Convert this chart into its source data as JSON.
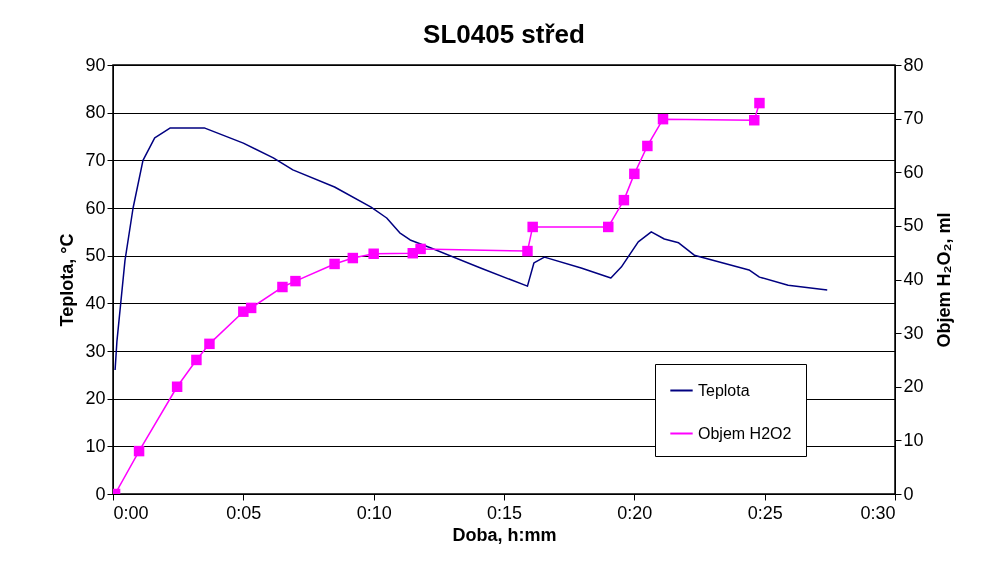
{
  "chart_data": {
    "type": "line",
    "title": "SL0405 střed",
    "xlabel": "Doba, h:mm",
    "ylabel": "Teplota, °C",
    "y2label": "Objem H₂O₂, ml",
    "xlim": [
      0,
      30
    ],
    "xticks": [
      {
        "value": 0,
        "label": "0:00"
      },
      {
        "value": 5,
        "label": "0:05"
      },
      {
        "value": 10,
        "label": "0:10"
      },
      {
        "value": 15,
        "label": "0:15"
      },
      {
        "value": 20,
        "label": "0:20"
      },
      {
        "value": 25,
        "label": "0:25"
      },
      {
        "value": 30,
        "label": "0:30"
      }
    ],
    "ylim": [
      0,
      90
    ],
    "yticks": [
      0,
      10,
      20,
      30,
      40,
      50,
      60,
      70,
      80,
      90
    ],
    "y2lim": [
      0,
      80
    ],
    "y2ticks": [
      0,
      10,
      20,
      30,
      40,
      50,
      60,
      70,
      80
    ],
    "grid": "y",
    "legend": "bottom right",
    "series": [
      {
        "name": "Teplota",
        "color": "#000080",
        "marker": "none",
        "x": [
          0.08,
          0.15,
          0.46,
          0.77,
          1.15,
          1.6,
          2.2,
          3.5,
          5.0,
          6.15,
          6.9,
          8.5,
          9.9,
          10.5,
          11.0,
          11.4,
          12.2,
          14.1,
          15.9,
          16.15,
          16.55,
          17.96,
          19.1,
          19.5,
          20.15,
          20.65,
          21.15,
          21.7,
          22.3,
          24.4,
          24.8,
          25.9,
          27.4
        ],
        "values": [
          26,
          32,
          49,
          60,
          70,
          74.7,
          76.8,
          76.8,
          73.6,
          70.5,
          68,
          64.4,
          60.2,
          57.9,
          54.8,
          53.3,
          51.6,
          47.4,
          43.6,
          48.5,
          49.7,
          47.4,
          45.3,
          47.6,
          52.9,
          55.0,
          53.5,
          52.7,
          50.1,
          47,
          45.5,
          43.8,
          42.8
        ]
      },
      {
        "name": "Objem H2O2",
        "color": "#ff00ff",
        "axis": "y2",
        "marker": "square",
        "x": [
          0.08,
          1.0,
          2.46,
          3.2,
          3.7,
          5.0,
          5.3,
          6.5,
          7.0,
          8.5,
          9.2,
          10.0,
          11.5,
          11.8,
          15.9,
          16.1,
          19.0,
          19.6,
          20.0,
          20.5,
          21.1,
          24.6,
          24.8
        ],
        "values": [
          0,
          8,
          20,
          25,
          28,
          34,
          34.7,
          38.6,
          39.7,
          42.9,
          44,
          44.8,
          44.9,
          45.7,
          45.3,
          49.8,
          49.8,
          54.8,
          59.7,
          64.9,
          69.9,
          69.7,
          72.9
        ]
      }
    ]
  }
}
